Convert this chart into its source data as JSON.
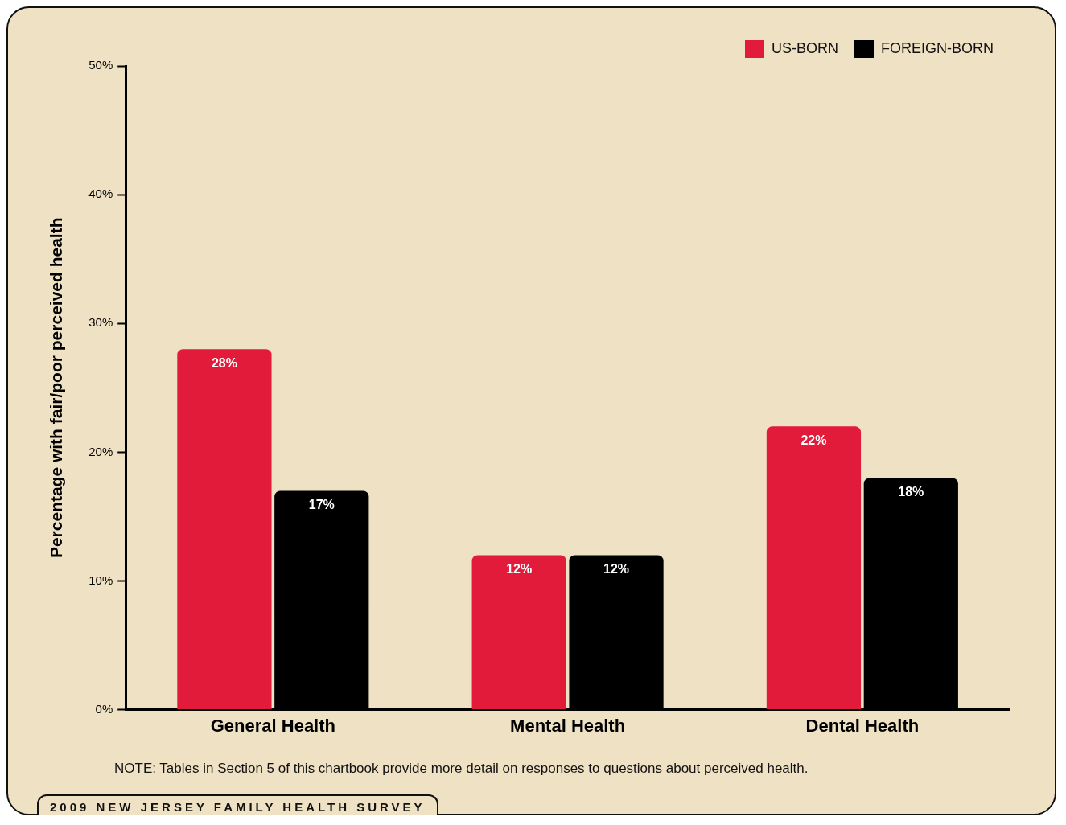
{
  "chart_data": {
    "type": "bar",
    "ylabel": "Percentage with fair/poor perceived health",
    "categories": [
      "General Health",
      "Mental Health",
      "Dental Health"
    ],
    "series": [
      {
        "name": "US-BORN",
        "color": "#e31b3a",
        "values": [
          28,
          12,
          22
        ],
        "value_labels": [
          "28%",
          "12%",
          "22%"
        ]
      },
      {
        "name": "FOREIGN-BORN",
        "color": "#000000",
        "values": [
          17,
          12,
          18
        ],
        "value_labels": [
          "17%",
          "12%",
          "18%"
        ]
      }
    ],
    "ylim": [
      0,
      50
    ],
    "yticks": [
      {
        "value": 0,
        "label": "0%"
      },
      {
        "value": 10,
        "label": "10%"
      },
      {
        "value": 20,
        "label": "20%"
      },
      {
        "value": 30,
        "label": "30%"
      },
      {
        "value": 40,
        "label": "40%"
      },
      {
        "value": 50,
        "label": "50%"
      }
    ],
    "grid": false,
    "legend": "top right",
    "annotations": [
      "NOTE:  Tables in Section 5 of this chartbook provide more detail on responses to questions about perceived health.",
      "2009 NEW JERSEY FAMILY HEALTH SURVEY"
    ]
  }
}
